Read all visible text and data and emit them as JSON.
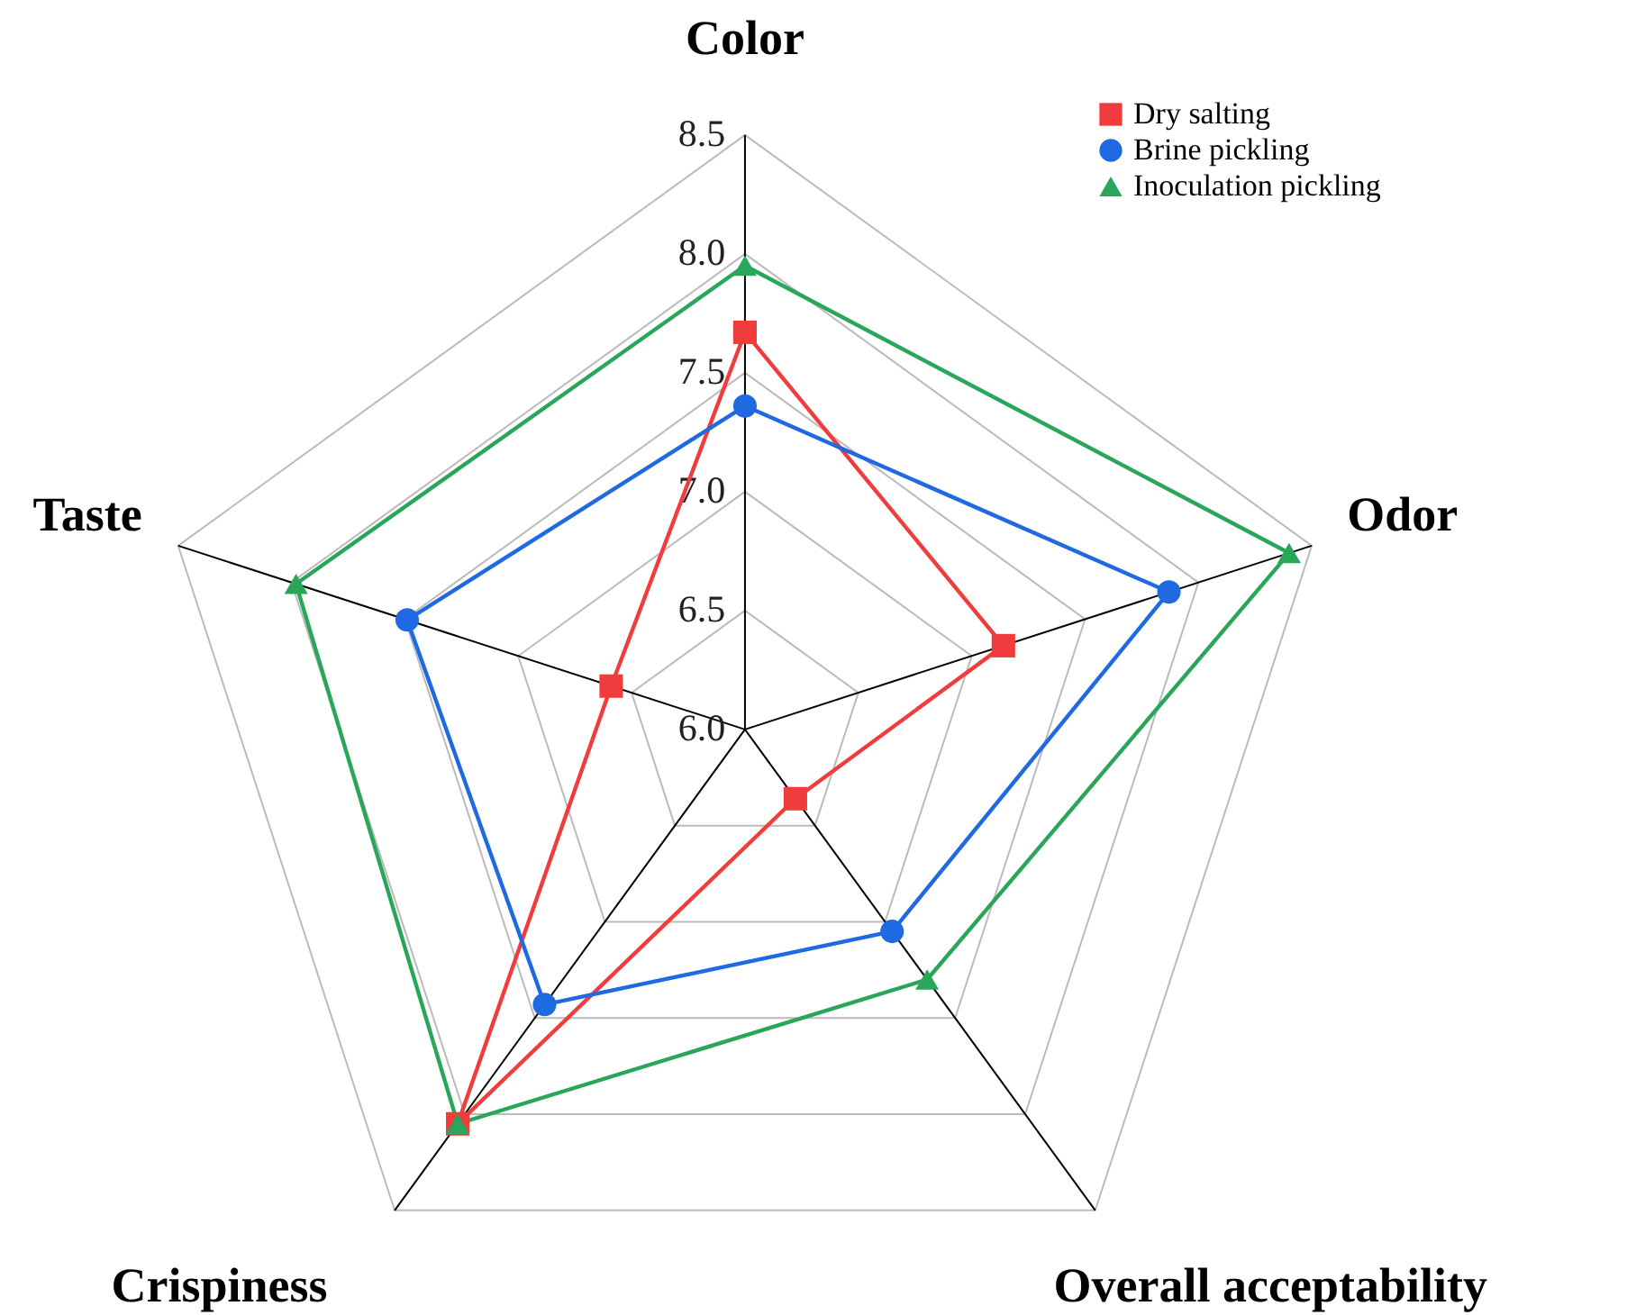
{
  "chart_data": {
    "type": "radar",
    "categories": [
      "Color",
      "Odor",
      "Overall acceptability",
      "Crispiness",
      "Taste"
    ],
    "ylim": [
      6.0,
      8.5
    ],
    "yticks": [
      {
        "value": 6.0,
        "label": "6.0"
      },
      {
        "value": 6.5,
        "label": "6.5"
      },
      {
        "value": 7.0,
        "label": "7.0"
      },
      {
        "value": 7.5,
        "label": "7.5"
      },
      {
        "value": 8.0,
        "label": "8.0"
      },
      {
        "value": 8.5,
        "label": "8.5"
      }
    ],
    "grid": true,
    "legend": "top right",
    "series": [
      {
        "name": "Dry salting",
        "color": "#f03c3c",
        "marker": "square",
        "values": [
          7.67,
          7.14,
          6.36,
          8.05,
          6.59
        ]
      },
      {
        "name": "Brine pickling",
        "color": "#1f6ae0",
        "marker": "circle",
        "values": [
          7.36,
          7.87,
          7.05,
          7.43,
          7.49
        ]
      },
      {
        "name": "Inoculation pickling",
        "color": "#2aa65a",
        "marker": "triangle",
        "values": [
          7.95,
          8.4,
          7.3,
          8.05,
          7.98
        ]
      }
    ]
  }
}
